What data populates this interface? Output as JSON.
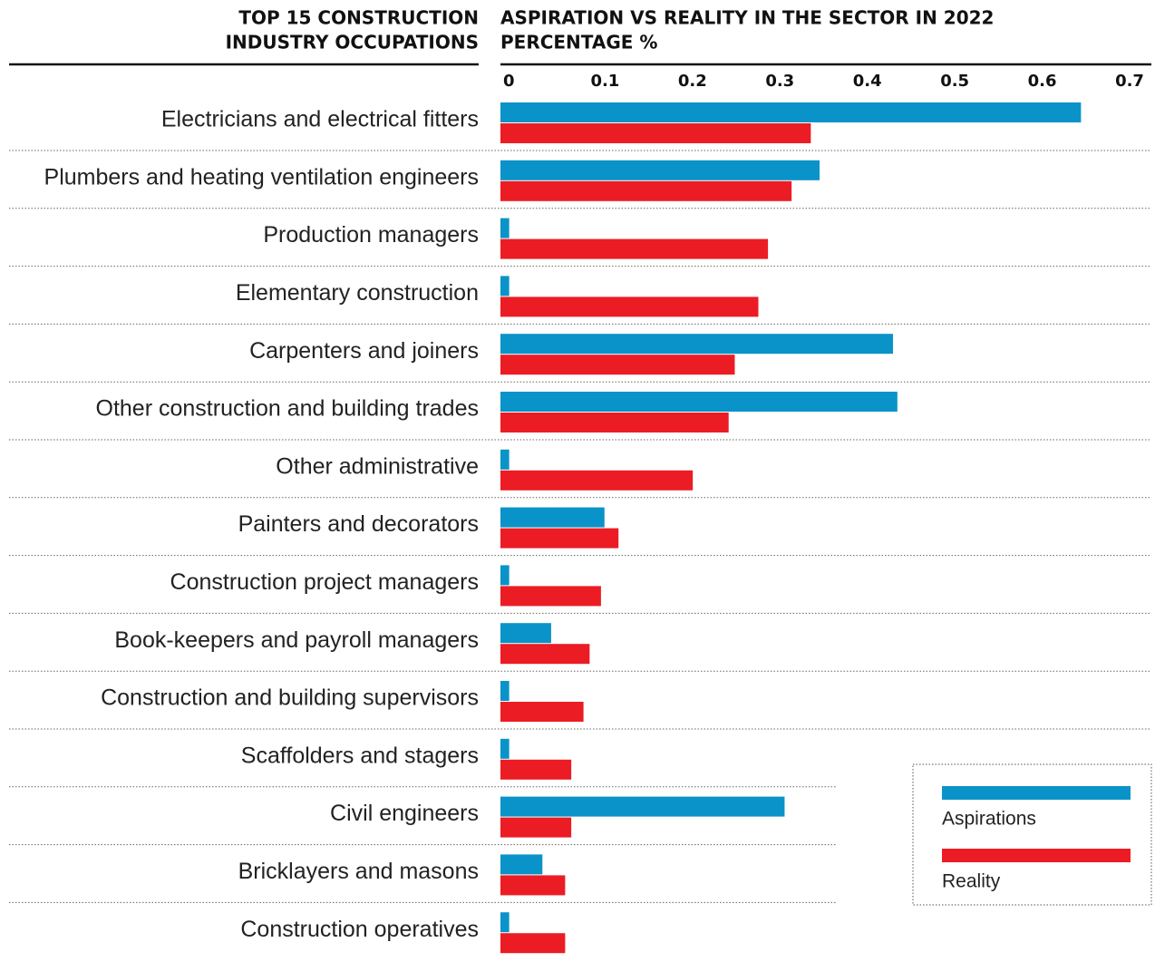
{
  "chart_data": {
    "type": "hbar",
    "left_header": [
      "TOP 15 CONSTRUCTION",
      "INDUSTRY OCCUPATIONS"
    ],
    "title": [
      "ASPIRATION VS REALITY IN THE SECTOR IN 2022",
      "PERCENTAGE %"
    ],
    "categories": [
      "Electricians and electrical fitters",
      "Plumbers and heating ventilation engineers",
      "Production managers",
      "Elementary construction",
      "Carpenters and joiners",
      "Other construction and building trades",
      "Other administrative",
      "Painters and decorators",
      "Construction project managers",
      "Book-keepers and payroll managers",
      "Construction and building supervisors",
      "Scaffolders and stagers",
      "Civil engineers",
      "Bricklayers and masons",
      "Construction operatives"
    ],
    "series": [
      {
        "name": "Aspirations",
        "color": "#0a93c8",
        "values": [
          0.664,
          0.365,
          0.01,
          0.01,
          0.449,
          0.454,
          0.01,
          0.119,
          0.01,
          0.058,
          0.01,
          0.01,
          0.325,
          0.048,
          0.01
        ]
      },
      {
        "name": "Reality",
        "color": "#ec1c24",
        "values": [
          0.355,
          0.333,
          0.306,
          0.295,
          0.268,
          0.261,
          0.22,
          0.135,
          0.115,
          0.102,
          0.095,
          0.081,
          0.081,
          0.074,
          0.074
        ]
      }
    ],
    "xlim": [
      0,
      0.73
    ],
    "xticks": [
      0,
      0.1,
      0.2,
      0.3,
      0.4,
      0.5,
      0.6,
      0.7
    ],
    "legend": "bottom-right"
  }
}
